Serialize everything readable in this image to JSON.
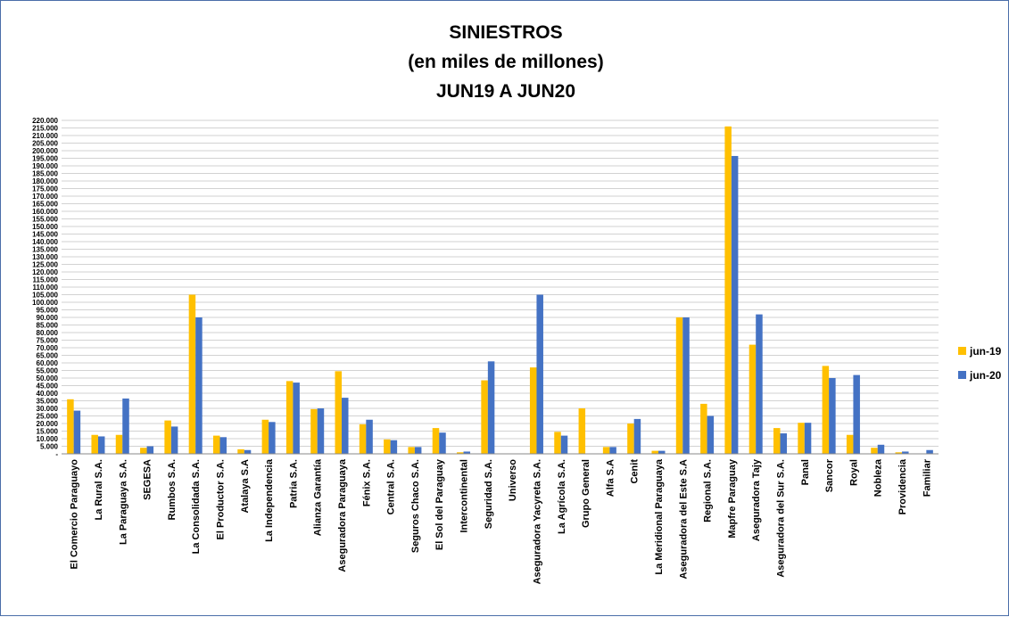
{
  "chart_data": {
    "type": "bar",
    "title_lines": [
      "SINIESTROS",
      "(en miles de millones)",
      "JUN19 A JUN20"
    ],
    "xlabel": "",
    "ylabel": "",
    "ylim": [
      0,
      220000
    ],
    "y_tick_step": 5000,
    "grid": true,
    "legend_position": "right",
    "categories": [
      "El Comercio Paraguayo",
      "La Rural S.A.",
      "La Paraguaya S.A.",
      "SEGESA",
      "Rumbos S.A.",
      "La Consolidada S.A.",
      "El Productor S.A.",
      "Atalaya S.A",
      "La Independencia",
      "Patria S.A.",
      "Alianza Garantía",
      "Aseguradora Paraguaya",
      "Fénix S.A.",
      "Central S.A.",
      "Seguros Chaco S.A.",
      "El Sol del Paraguay",
      "Intercontinental",
      "Seguridad S.A.",
      "Universo",
      "Aseguradora Yacyreta S.A.",
      "La Agrícola S.A.",
      "Grupo General",
      "Alfa S.A",
      "Cenit",
      "La Meridional Paraguaya",
      "Aseguradora del Este S.A",
      "Regional S.A.",
      "Mapfre Paraguay",
      "Aseguradora Tajy",
      "Aseguradora del Sur S.A.",
      "Panal",
      "Sancor",
      "Royal",
      "Nobleza",
      "Providencia",
      "Familiar"
    ],
    "series": [
      {
        "name": "jun-19",
        "color": "#ffc000",
        "values": [
          36000,
          12500,
          12500,
          4000,
          22000,
          105000,
          12000,
          3000,
          22500,
          48000,
          29500,
          54500,
          19500,
          9500,
          4500,
          17000,
          1000,
          48500,
          0,
          57000,
          14500,
          30000,
          4500,
          20000,
          2000,
          90000,
          33000,
          216000,
          72000,
          17000,
          20500,
          58000,
          12500,
          4000,
          1000,
          0
        ]
      },
      {
        "name": "jun-20",
        "color": "#4472c4",
        "values": [
          28500,
          11500,
          36500,
          5000,
          18000,
          90000,
          11000,
          2500,
          21000,
          47000,
          30000,
          37000,
          22500,
          9000,
          4500,
          14000,
          1500,
          61000,
          0,
          105000,
          12000,
          0,
          4500,
          23000,
          2000,
          90000,
          25000,
          196500,
          92000,
          13500,
          20500,
          50000,
          52000,
          6000,
          1500,
          2500
        ]
      }
    ]
  }
}
